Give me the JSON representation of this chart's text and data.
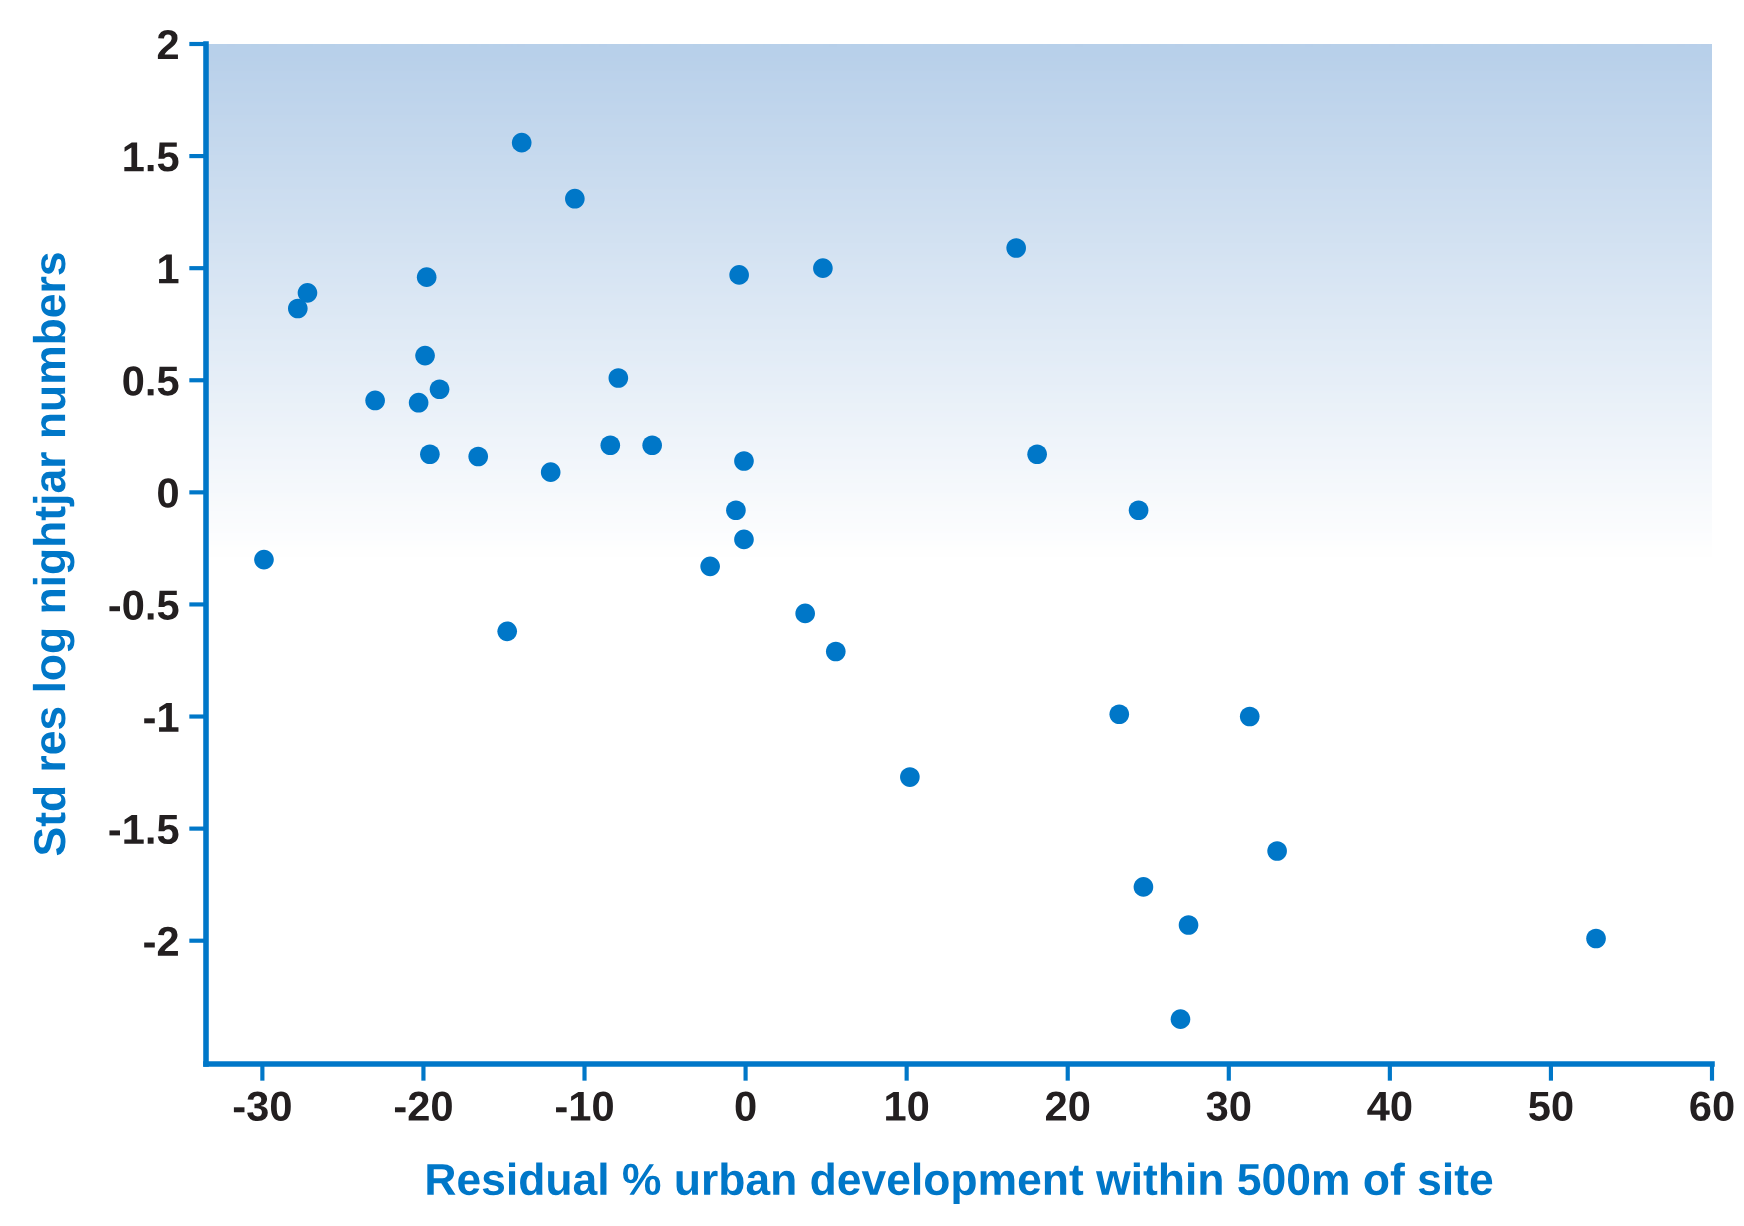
{
  "chart_data": {
    "type": "scatter",
    "xlabel": "Residual % urban development within 500m of site",
    "ylabel": "Std res log nightjar numbers",
    "xlim": [
      -33.5,
      60
    ],
    "ylim": [
      -2.55,
      2
    ],
    "xticks": [
      -30,
      -20,
      -10,
      0,
      10,
      20,
      30,
      40,
      50,
      60
    ],
    "yticks": [
      {
        "value": -2,
        "label": "-2"
      },
      {
        "value": -1.5,
        "label": "-1.5"
      },
      {
        "value": -1,
        "label": "-1"
      },
      {
        "value": -0.5,
        "label": "-0.5"
      },
      0,
      0.5,
      1,
      1.5,
      2
    ],
    "grid": false,
    "marker": "circle",
    "series": [
      {
        "color": "#0077c8",
        "x": [
          -29.9,
          -27.8,
          -27.2,
          -13.9,
          -10.6,
          -19.8,
          -0.4,
          4.8,
          16.8,
          -19.9,
          -19.0,
          -7.9,
          -23.0,
          -20.3,
          -19.6,
          -16.6,
          -12.1,
          -8.4,
          -5.8,
          -0.1,
          -0.6,
          -0.1,
          -2.2,
          -14.8,
          3.7,
          5.6,
          10.2,
          18.1,
          24.4,
          23.2,
          31.3,
          33.0,
          24.7,
          27.5,
          27.0,
          52.8
        ],
        "values": [
          -0.3,
          0.82,
          0.89,
          1.56,
          1.31,
          0.96,
          0.97,
          1.0,
          1.09,
          0.61,
          0.46,
          0.51,
          0.41,
          0.4,
          0.17,
          0.16,
          0.09,
          0.21,
          0.21,
          0.14,
          -0.08,
          -0.21,
          -0.33,
          -0.62,
          -0.54,
          -0.71,
          -1.27,
          0.17,
          -0.08,
          -0.99,
          -1.0,
          -1.6,
          -1.76,
          -1.93,
          -2.35,
          -1.99
        ]
      }
    ]
  }
}
